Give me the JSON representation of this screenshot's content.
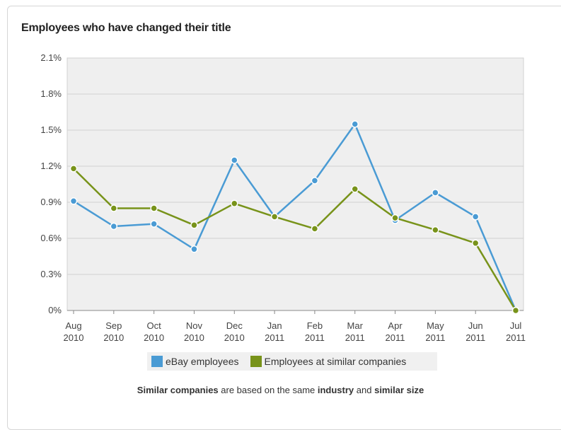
{
  "title": "Employees who have changed their title",
  "colors": {
    "series1": "#4a9bd4",
    "series2": "#78931a"
  },
  "chart_data": {
    "type": "line",
    "title": "Employees who have changed their title",
    "xlabel": "",
    "ylabel": "",
    "ylim": [
      0,
      2.1
    ],
    "yticks": [
      "0%",
      "0.3%",
      "0.6%",
      "0.9%",
      "1.2%",
      "1.5%",
      "1.8%",
      "2.1%"
    ],
    "ytick_values": [
      0,
      0.3,
      0.6,
      0.9,
      1.2,
      1.5,
      1.8,
      2.1
    ],
    "categories": [
      [
        "Aug",
        "2010"
      ],
      [
        "Sep",
        "2010"
      ],
      [
        "Oct",
        "2010"
      ],
      [
        "Nov",
        "2010"
      ],
      [
        "Dec",
        "2010"
      ],
      [
        "Jan",
        "2011"
      ],
      [
        "Feb",
        "2011"
      ],
      [
        "Mar",
        "2011"
      ],
      [
        "Apr",
        "2011"
      ],
      [
        "May",
        "2011"
      ],
      [
        "Jun",
        "2011"
      ],
      [
        "Jul",
        "2011"
      ]
    ],
    "grid": true,
    "legend_position": "bottom",
    "series": [
      {
        "name": "eBay employees",
        "color": "#4a9bd4",
        "values": [
          0.91,
          0.7,
          0.72,
          0.51,
          1.25,
          0.78,
          1.08,
          1.55,
          0.75,
          0.98,
          0.78,
          0.0
        ]
      },
      {
        "name": "Employees at similar companies",
        "color": "#78931a",
        "values": [
          1.18,
          0.85,
          0.85,
          0.71,
          0.89,
          0.78,
          0.68,
          1.01,
          0.77,
          0.67,
          0.56,
          0.0
        ]
      }
    ]
  },
  "footnote": {
    "b1": "Similar companies",
    "t1": " are based on the same ",
    "b2": "industry",
    "t2": " and ",
    "b3": "similar size"
  }
}
